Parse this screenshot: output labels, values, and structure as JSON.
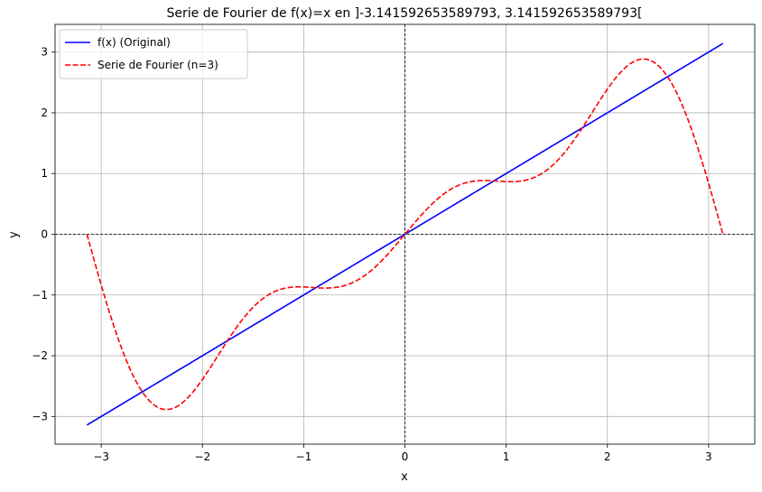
{
  "chart_data": {
    "type": "line",
    "title": "Serie de Fourier de f(x)=x en ]-3.141592653589793, 3.141592653589793[",
    "xlabel": "x",
    "ylabel": "y",
    "xlim": [
      -3.456,
      3.456
    ],
    "ylim": [
      -3.456,
      3.456
    ],
    "x_domain": [
      -3.141592653589793,
      3.141592653589793
    ],
    "xticks": [
      -3,
      -2,
      -1,
      0,
      1,
      2,
      3
    ],
    "yticks": [
      -3,
      -2,
      -1,
      0,
      1,
      2,
      3
    ],
    "xtick_labels": [
      "−3",
      "−2",
      "−1",
      "0",
      "1",
      "2",
      "3"
    ],
    "ytick_labels": [
      "−3",
      "−2",
      "−1",
      "0",
      "1",
      "2",
      "3"
    ],
    "grid": true,
    "reference_lines": [
      "y=0",
      "x=0"
    ],
    "legend_position": "top-left",
    "series": [
      {
        "name": "f(x) (Original)",
        "color": "#0000ff",
        "style": "solid",
        "formula": "y = x"
      },
      {
        "name": "Serie de Fourier (n=3)",
        "color": "#ff0000",
        "style": "dashed",
        "formula": "y = 2(sin x − sin 2x / 2 + sin 3x / 3)"
      }
    ]
  }
}
